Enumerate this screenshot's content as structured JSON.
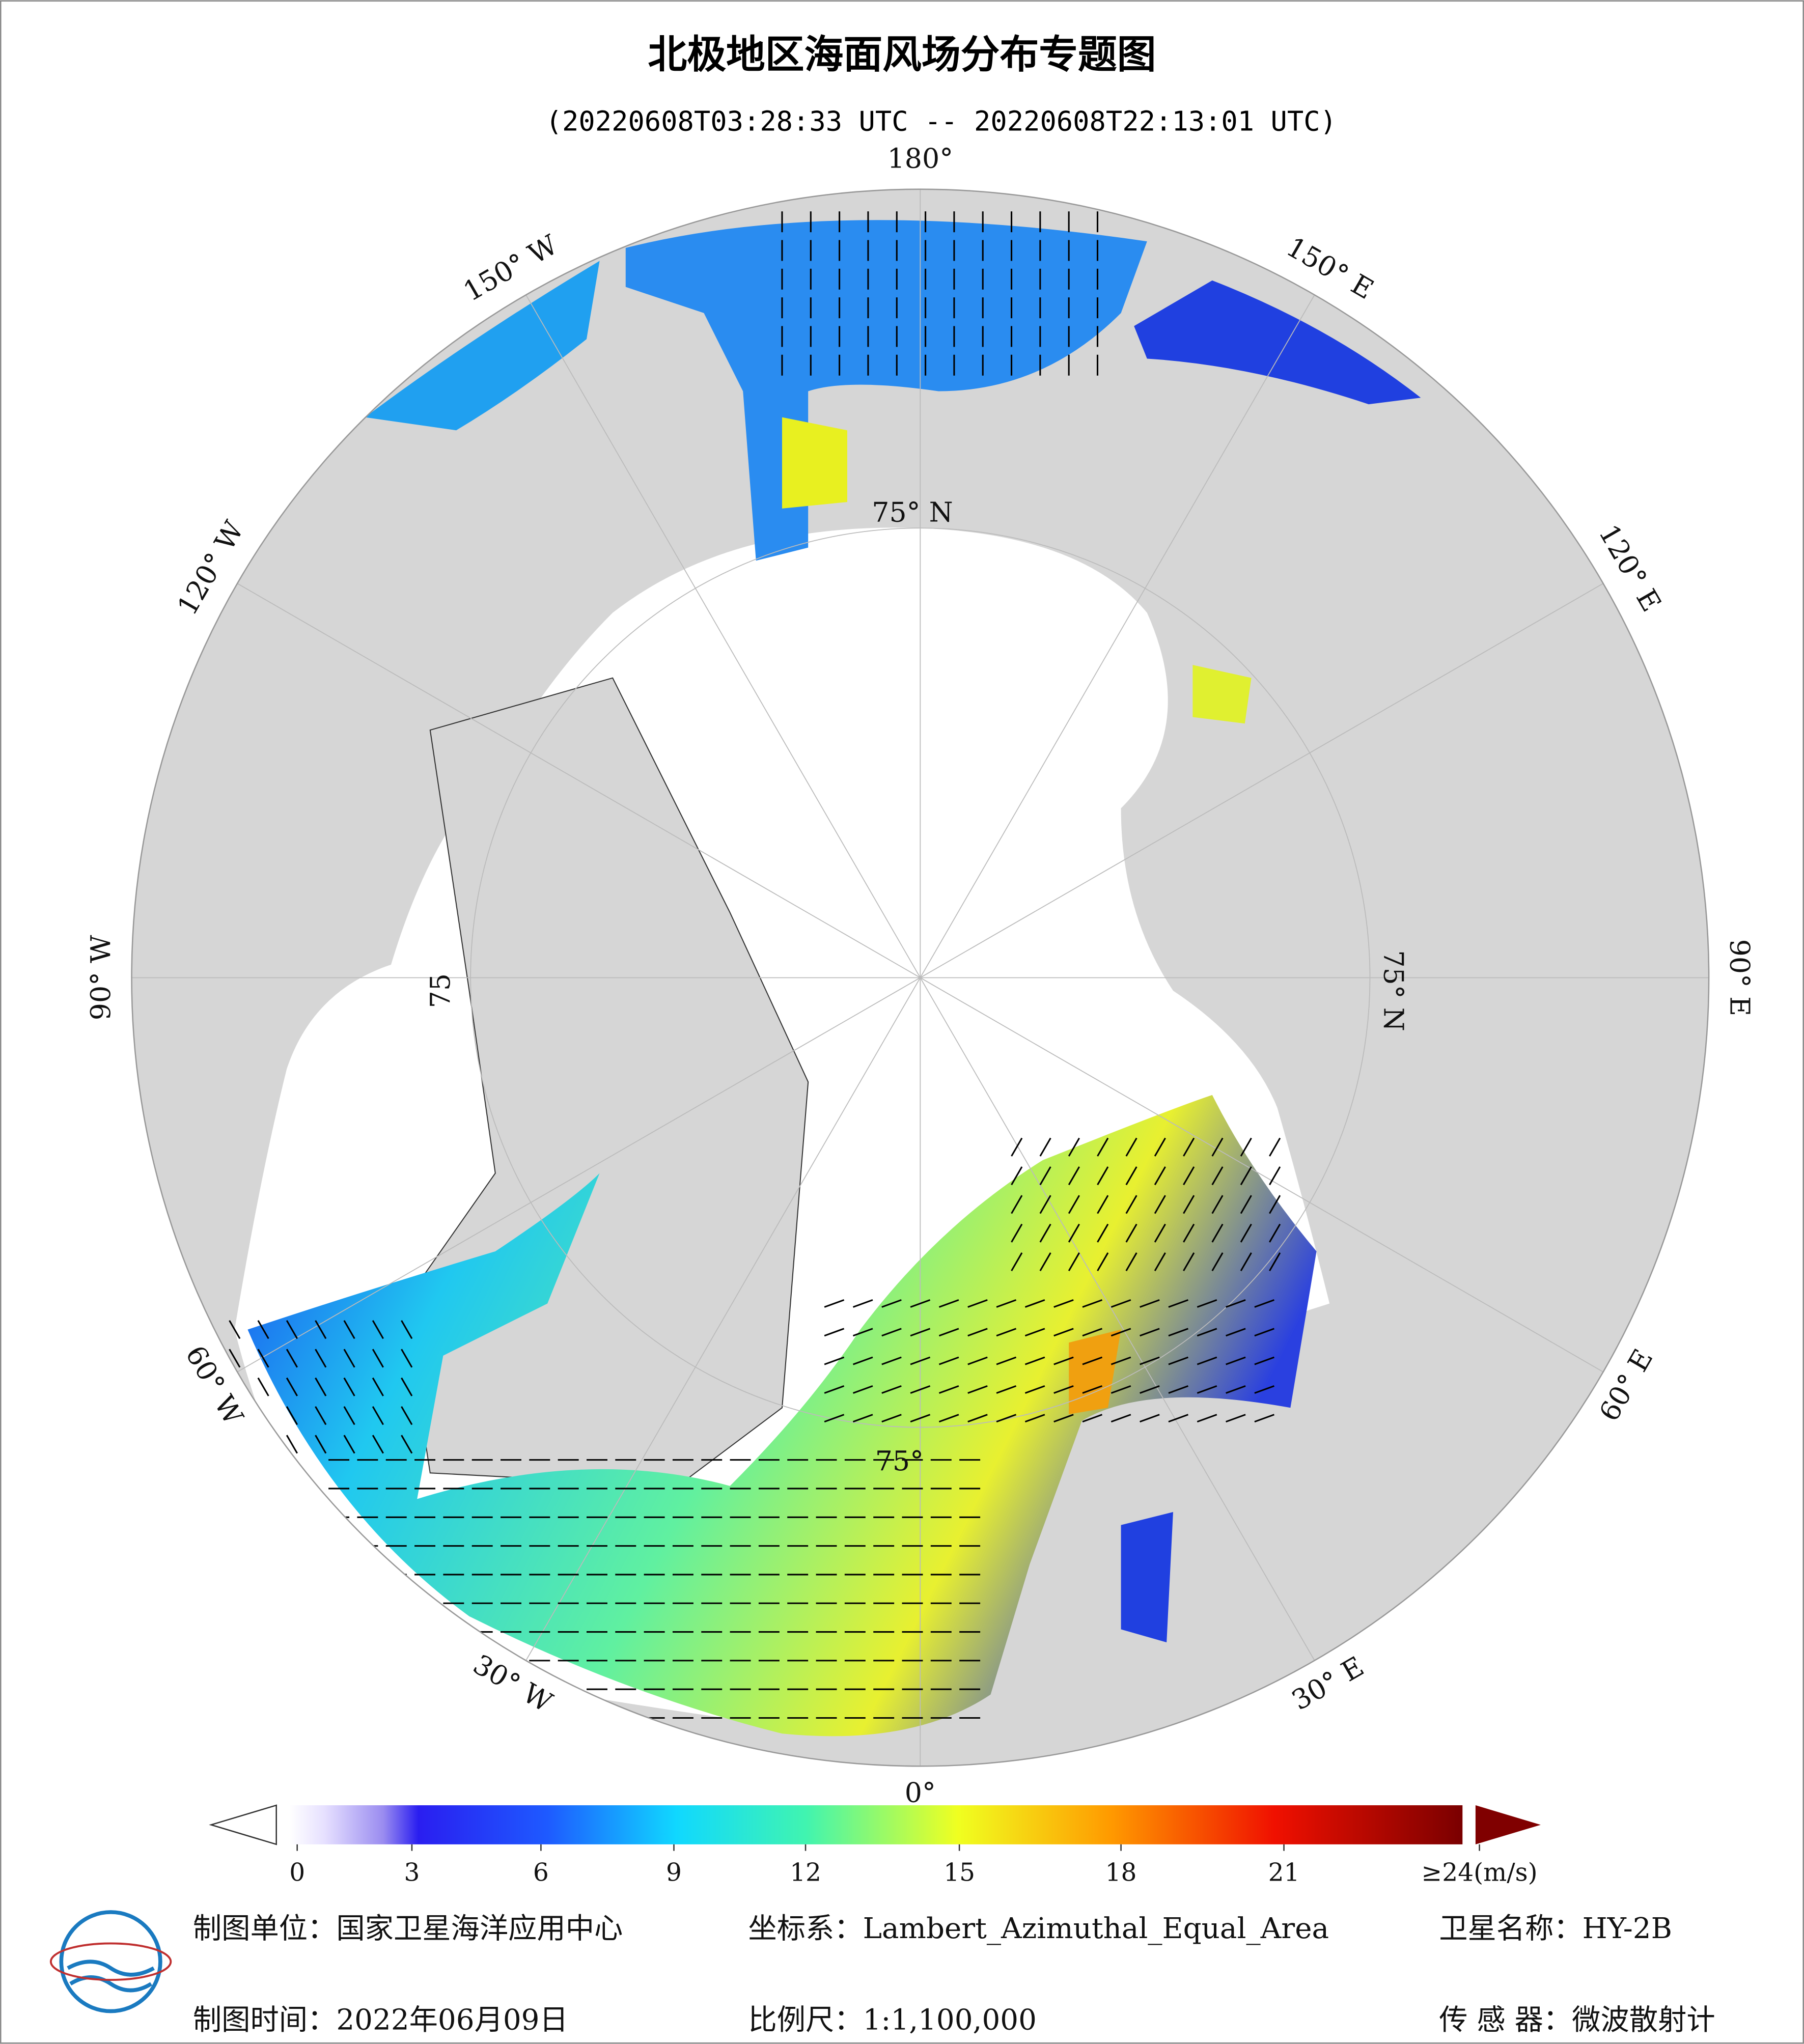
{
  "header": {
    "title": "北极地区海面风场分布专题图",
    "subtitle": "(20220608T03:28:33 UTC -- 20220608T22:13:01 UTC)"
  },
  "map": {
    "longitude_labels": [
      "180°",
      "150° E",
      "120° E",
      "90° E",
      "60° E",
      "30° E",
      "0°",
      "30° W",
      "60° W",
      "90° W",
      "120° W",
      "150° W"
    ],
    "latitude_labels": [
      "75° N",
      "75° N",
      "75°",
      "75"
    ]
  },
  "colorbar": {
    "range": [
      0,
      24
    ],
    "ticks": [
      0,
      3,
      6,
      9,
      12,
      15,
      18,
      21,
      {
        "value": 24,
        "label": "≥24(m/s)"
      }
    ]
  },
  "footer": {
    "unit": "制图单位：国家卫星海洋应用中心",
    "date": "制图时间：2022年06月09日",
    "crs": "坐标系：Lambert_Azimuthal_Equal_Area",
    "scale": "比例尺：1:1,100,000",
    "satellite": "卫星名称：HY-2B",
    "sensor": "传 感 器：微波散射计"
  }
}
